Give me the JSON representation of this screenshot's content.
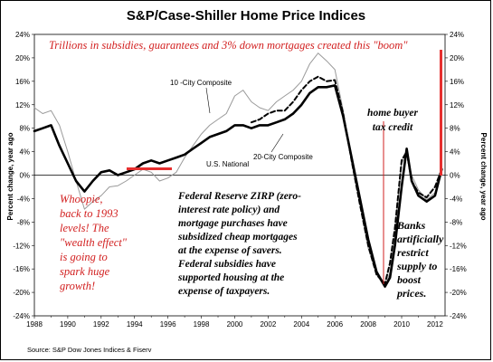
{
  "chart_data": {
    "type": "line",
    "title": "S&P/Case-Shiller Home Price Indices",
    "ylabel_left": "Percent change, year ago",
    "ylabel_right": "Percent change, year ago",
    "xlim": [
      1988,
      2012.6
    ],
    "ylim": [
      -24,
      24
    ],
    "x_ticks": [
      "1988",
      "1990",
      "1992",
      "1994",
      "1996",
      "1998",
      "2000",
      "2002",
      "2004",
      "2006",
      "2008",
      "2010",
      "2012"
    ],
    "y_ticks_left": [
      "24%",
      "20%",
      "16%",
      "12%",
      "8%",
      "4%",
      "0%",
      "-4%",
      "-8%",
      "-12%",
      "-16%",
      "-20%",
      "-24%"
    ],
    "y_ticks_right": [
      "24%",
      "20%",
      "16%",
      "12%",
      "8%",
      "4%",
      "0%",
      "-4%",
      "-8%",
      "-12%",
      "-16%",
      "-20%",
      "-24%"
    ],
    "source": "Source: S&P Dow Jones Indices & Fiserv",
    "series": [
      {
        "name": "10 -City Composite",
        "color": "#9a9a9a",
        "style": "thin",
        "x": [
          1988.0,
          1988.5,
          1989.0,
          1989.5,
          1990.0,
          1990.5,
          1991.0,
          1991.5,
          1992.0,
          1992.5,
          1993.0,
          1993.5,
          1994.0,
          1994.5,
          1995.0,
          1995.5,
          1996.0,
          1996.5,
          1997.0,
          1997.5,
          1998.0,
          1998.5,
          1999.0,
          1999.5,
          2000.0,
          2000.5,
          2001.0,
          2001.5,
          2002.0,
          2002.5,
          2003.0,
          2003.5,
          2004.0,
          2004.5,
          2005.0,
          2005.5,
          2006.0,
          2006.5,
          2007.0,
          2007.5,
          2008.0,
          2008.5,
          2009.0,
          2009.3,
          2009.6,
          2010.0,
          2010.3,
          2010.6,
          2011.0,
          2011.5,
          2012.0,
          2012.4
        ],
        "values": [
          11.5,
          10.5,
          11.0,
          8.5,
          4.0,
          -1.0,
          -5.8,
          -4.5,
          -3.5,
          -2.0,
          -1.8,
          -1.0,
          0.0,
          1.0,
          0.5,
          -1.0,
          -0.5,
          0.5,
          3.0,
          5.0,
          7.0,
          8.5,
          9.5,
          10.5,
          13.5,
          14.5,
          12.5,
          11.5,
          11.0,
          12.5,
          13.5,
          14.5,
          16.0,
          19.0,
          20.8,
          19.5,
          18.0,
          11.0,
          2.0,
          -5.0,
          -12.5,
          -17.0,
          -19.2,
          -16.5,
          -10.0,
          2.0,
          3.5,
          0.0,
          -2.5,
          -4.2,
          -3.0,
          1.0
        ]
      },
      {
        "name": "U.S. National",
        "color": "#000000",
        "style": "thick",
        "x": [
          1988.0,
          1988.5,
          1989.0,
          1989.5,
          1990.0,
          1990.5,
          1991.0,
          1991.5,
          1992.0,
          1992.5,
          1993.0,
          1993.5,
          1994.0,
          1994.5,
          1995.0,
          1995.5,
          1996.0,
          1996.5,
          1997.0,
          1997.5,
          1998.0,
          1998.5,
          1999.0,
          1999.5,
          2000.0,
          2000.5,
          2001.0,
          2001.5,
          2002.0,
          2002.5,
          2003.0,
          2003.5,
          2004.0,
          2004.5,
          2005.0,
          2005.5,
          2006.0,
          2006.5,
          2007.0,
          2007.5,
          2008.0,
          2008.5,
          2009.0,
          2009.3,
          2009.6,
          2010.0,
          2010.3,
          2010.6,
          2011.0,
          2011.5,
          2012.0,
          2012.4
        ],
        "values": [
          7.5,
          8.0,
          8.5,
          5.0,
          2.0,
          -1.0,
          -2.8,
          -1.0,
          0.5,
          0.8,
          0.0,
          0.5,
          1.0,
          2.0,
          2.5,
          2.0,
          2.5,
          3.0,
          3.5,
          4.5,
          5.5,
          6.5,
          7.0,
          7.5,
          8.5,
          8.5,
          8.0,
          8.5,
          8.5,
          9.0,
          9.5,
          10.5,
          12.0,
          14.0,
          15.0,
          15.0,
          15.3,
          10.0,
          3.0,
          -4.0,
          -11.0,
          -16.5,
          -19.0,
          -17.5,
          -12.0,
          -2.0,
          4.5,
          -1.0,
          -3.5,
          -4.5,
          -3.5,
          1.0
        ]
      },
      {
        "name": "20-City Composite",
        "color": "#000000",
        "style": "dashed",
        "x": [
          2001.0,
          2001.5,
          2002.0,
          2002.5,
          2003.0,
          2003.5,
          2004.0,
          2004.5,
          2005.0,
          2005.5,
          2006.0,
          2006.5,
          2007.0,
          2007.5,
          2008.0,
          2008.5,
          2009.0,
          2009.3,
          2009.6,
          2010.0,
          2010.3,
          2010.6,
          2011.0,
          2011.5,
          2012.0,
          2012.4
        ],
        "values": [
          9.0,
          9.5,
          10.5,
          11.0,
          11.0,
          12.5,
          14.5,
          16.0,
          16.8,
          16.0,
          16.2,
          10.5,
          2.5,
          -5.0,
          -12.0,
          -17.0,
          -18.5,
          -15.0,
          -9.0,
          2.5,
          4.0,
          -1.0,
          -3.0,
          -3.8,
          -2.0,
          1.0
        ]
      }
    ],
    "annotations": {
      "top_banner": "Trillions in subsidies, guarantees and 3% down mortgages created this \"boom\"",
      "whoopie": [
        "Whoopie,",
        "back to 1993",
        "levels! The",
        "\"wealth effect\"",
        "is going to",
        "spark huge",
        "growth!"
      ],
      "fed_box": [
        "Federal Reserve ZIRP (zero-",
        "interest rate policy) and",
        "mortgage purchases have",
        "subsidized cheap mortgages",
        "at the expense of savers.",
        "Federal subsidies have",
        "supported housing at the",
        "expense of taxpayers."
      ],
      "tax_credit": [
        "home buyer",
        "tax credit"
      ],
      "banks": [
        "Banks",
        "artificially",
        "restrict",
        "supply to",
        "boost",
        "prices."
      ]
    },
    "colors": {
      "annotation_red": "#d22020",
      "highlight_bar": "#e63030"
    }
  }
}
